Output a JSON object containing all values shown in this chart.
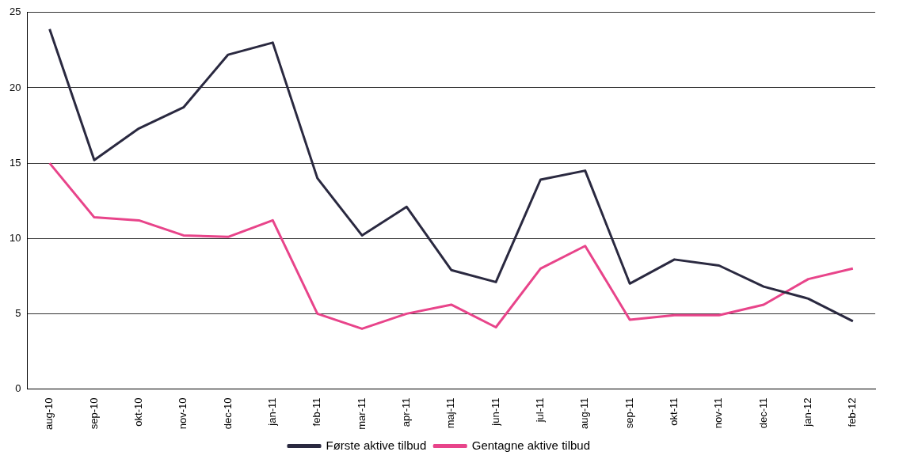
{
  "chart_data": {
    "type": "line",
    "categories": [
      "aug-10",
      "sep-10",
      "okt-10",
      "nov-10",
      "dec-10",
      "jan-11",
      "feb-11",
      "mar-11",
      "apr-11",
      "maj-11",
      "jun-11",
      "jul-11",
      "aug-11",
      "sep-11",
      "okt-11",
      "nov-11",
      "dec-11",
      "jan-12",
      "feb-12"
    ],
    "series": [
      {
        "name": "Første aktive tilbud",
        "color": "#2a2940",
        "values": [
          23.9,
          15.2,
          17.3,
          18.7,
          22.2,
          23.0,
          14.0,
          10.2,
          12.1,
          7.9,
          7.1,
          13.9,
          14.5,
          7.0,
          8.6,
          8.2,
          6.8,
          6.0,
          4.5
        ]
      },
      {
        "name": "Gentagne aktive tilbud",
        "color": "#e8448a",
        "values": [
          15.0,
          11.4,
          11.2,
          10.2,
          10.1,
          11.2,
          5.0,
          4.0,
          5.0,
          5.6,
          4.1,
          8.0,
          9.5,
          4.6,
          4.9,
          4.9,
          5.6,
          7.3,
          8.0
        ]
      }
    ],
    "ylim": [
      0,
      25
    ],
    "yticks": [
      0,
      5,
      10,
      15,
      20,
      25
    ],
    "grid": "y",
    "legend": "bottom",
    "marker": "none",
    "line_style": "solid"
  }
}
